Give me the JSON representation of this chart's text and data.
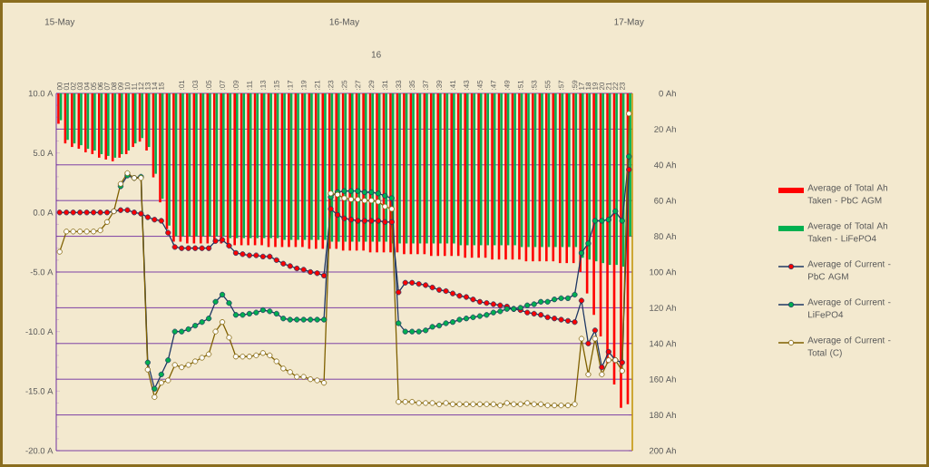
{
  "chart_data": {
    "type": "bar",
    "categories": [
      "00",
      "01",
      "02",
      "03",
      "04",
      "05",
      "06",
      "07",
      "08",
      "09",
      "10",
      "11",
      "12",
      "13",
      "14",
      "15",
      null,
      null,
      ":01",
      null,
      ":03",
      null,
      ":05",
      null,
      ":07",
      null,
      ":09",
      null,
      ":11",
      null,
      ":13",
      null,
      ":15",
      null,
      ":17",
      null,
      ":19",
      null,
      ":21",
      null,
      ":23",
      null,
      ":25",
      null,
      ":27",
      null,
      ":29",
      null,
      ":31",
      null,
      ":33",
      null,
      ":35",
      null,
      ":37",
      null,
      ":39",
      null,
      ":41",
      null,
      ":43",
      null,
      ":45",
      null,
      ":47",
      null,
      ":49",
      null,
      ":51",
      null,
      ":53",
      null,
      ":55",
      null,
      ":57",
      null,
      ":59",
      "17",
      "18",
      "19",
      "20",
      "21",
      "22",
      "23",
      null
    ],
    "series": [
      {
        "name": "Average of Total Ah Taken - PbC AGM",
        "axis": "y2",
        "color": "#ff0000",
        "values": [
          17,
          28,
          30,
          31,
          33,
          34,
          36,
          37,
          38,
          36,
          34,
          30,
          27,
          32,
          47,
          61,
          76,
          83,
          83,
          84,
          84,
          84,
          84,
          84,
          84,
          85,
          85,
          85,
          85,
          85,
          85,
          86,
          86,
          86,
          86,
          86,
          86,
          87,
          87,
          87,
          87,
          87,
          88,
          88,
          88,
          88,
          89,
          89,
          89,
          89,
          89,
          90,
          90,
          90,
          90,
          91,
          91,
          91,
          91,
          91,
          92,
          92,
          92,
          92,
          93,
          93,
          93,
          93,
          93,
          94,
          94,
          94,
          94,
          94,
          95,
          95,
          95,
          100,
          112,
          124,
          136,
          151,
          163,
          176,
          174
        ]
      },
      {
        "name": "Average of Total Ah Taken - LiFePO4",
        "axis": "y2",
        "color": "#00b050",
        "values": [
          15,
          26,
          28,
          29,
          31,
          32,
          34,
          35,
          36,
          34,
          32,
          28,
          25,
          30,
          45,
          59,
          74,
          80,
          80,
          80,
          80,
          80,
          80,
          80,
          80,
          81,
          81,
          81,
          81,
          81,
          81,
          81,
          81,
          82,
          82,
          82,
          82,
          82,
          82,
          82,
          83,
          83,
          83,
          83,
          83,
          83,
          83,
          83,
          83,
          84,
          84,
          84,
          84,
          84,
          84,
          84,
          84,
          84,
          84,
          85,
          85,
          85,
          85,
          85,
          85,
          85,
          85,
          85,
          86,
          86,
          86,
          86,
          86,
          86,
          86,
          86,
          86,
          92,
          93,
          94,
          95,
          96,
          96,
          97,
          80
        ]
      },
      {
        "name": "Average of Current - PbC AGM",
        "type": "line",
        "color": "#ff0000",
        "values": [
          0.0,
          0.0,
          0.0,
          0.0,
          0.0,
          0.0,
          0.0,
          0.0,
          0.1,
          0.2,
          0.2,
          0.0,
          -0.1,
          -0.4,
          -0.6,
          -0.7,
          -1.7,
          -2.9,
          -3.0,
          -3.0,
          -3.0,
          -3.0,
          -3.0,
          -2.4,
          -2.3,
          -2.8,
          -3.4,
          -3.5,
          -3.6,
          -3.6,
          -3.7,
          -3.7,
          -4.0,
          -4.3,
          -4.5,
          -4.7,
          -4.8,
          -5.0,
          -5.1,
          -5.3,
          0.3,
          -0.2,
          -0.5,
          -0.6,
          -0.7,
          -0.7,
          -0.7,
          -0.7,
          -0.8,
          -0.8,
          -6.7,
          -5.9,
          -5.9,
          -6.0,
          -6.1,
          -6.3,
          -6.5,
          -6.6,
          -6.8,
          -7.0,
          -7.1,
          -7.3,
          -7.5,
          -7.6,
          -7.7,
          -7.8,
          -7.9,
          -8.1,
          -8.2,
          -8.4,
          -8.5,
          -8.6,
          -8.8,
          -8.9,
          -9.0,
          -9.1,
          -9.2,
          -7.4,
          -11.0,
          -9.9,
          -13.0,
          -11.7,
          -12.4,
          -12.6,
          3.6
        ]
      },
      {
        "name": "Average of Current - LiFePO4",
        "type": "line",
        "color": "#00b050",
        "values": [
          null,
          null,
          null,
          null,
          null,
          null,
          null,
          null,
          null,
          2.2,
          3.1,
          2.9,
          3.0,
          -12.6,
          -14.8,
          -13.6,
          -12.4,
          -10.0,
          -10.0,
          -9.8,
          -9.5,
          -9.2,
          -8.9,
          -7.5,
          -6.9,
          -7.6,
          -8.6,
          -8.6,
          -8.5,
          -8.4,
          -8.2,
          -8.3,
          -8.5,
          -8.9,
          -9.0,
          -9.0,
          -9.0,
          -9.0,
          -9.0,
          -9.0,
          1.3,
          1.7,
          1.8,
          1.8,
          1.8,
          1.7,
          1.7,
          1.6,
          1.4,
          1.2,
          -9.3,
          -10.0,
          -10.0,
          -10.0,
          -9.9,
          -9.6,
          -9.5,
          -9.3,
          -9.2,
          -9.0,
          -8.9,
          -8.8,
          -8.7,
          -8.6,
          -8.4,
          -8.3,
          -8.1,
          -8.1,
          -8.0,
          -7.8,
          -7.7,
          -7.5,
          -7.5,
          -7.3,
          -7.2,
          -7.2,
          -6.9,
          -3.4,
          -2.6,
          -0.7,
          -0.7,
          -0.6,
          0.1,
          -0.7,
          4.7
        ]
      },
      {
        "name": "Average of Current - Total (C)",
        "type": "line",
        "color": "#ffffff",
        "values": [
          -3.3,
          -1.6,
          -1.6,
          -1.6,
          -1.6,
          -1.6,
          -1.5,
          -0.8,
          0.1,
          2.4,
          3.3,
          2.9,
          2.9,
          -13.2,
          -15.5,
          -14.3,
          -14.1,
          -12.8,
          -13.0,
          -12.8,
          -12.5,
          -12.2,
          -11.9,
          -10.0,
          -9.2,
          -10.5,
          -12.1,
          -12.1,
          -12.1,
          -12.0,
          -11.8,
          -12.0,
          -12.5,
          -13.1,
          -13.4,
          -13.8,
          -13.8,
          -14.0,
          -14.1,
          -14.3,
          1.6,
          1.5,
          1.2,
          1.1,
          1.1,
          1.0,
          1.0,
          0.9,
          0.5,
          0.3,
          -15.9,
          -15.9,
          -15.9,
          -16.0,
          -16.0,
          -16.0,
          -16.1,
          -16.0,
          -16.1,
          -16.1,
          -16.1,
          -16.1,
          -16.1,
          -16.1,
          -16.1,
          -16.2,
          -16.0,
          -16.1,
          -16.1,
          -16.0,
          -16.1,
          -16.1,
          -16.2,
          -16.2,
          -16.2,
          -16.2,
          -16.1,
          -10.6,
          -13.6,
          -10.6,
          -13.6,
          -12.4,
          -12.4,
          -13.3,
          8.3
        ]
      }
    ],
    "ylim": [
      -20,
      10
    ],
    "yticks": [
      {
        "value": -20,
        "label": "-20.0 A"
      },
      {
        "value": -15,
        "label": "-15.0 A"
      },
      {
        "value": -10,
        "label": "-10.0 A"
      },
      {
        "value": -5,
        "label": "-5.0 A"
      },
      {
        "value": 0,
        "label": "0.0 A"
      },
      {
        "value": 5,
        "label": "5.0 A"
      },
      {
        "value": 10,
        "label": "10.0 A"
      }
    ],
    "y2lim": [
      200,
      0
    ],
    "y2ticks": [
      {
        "value": 0,
        "label": "0 Ah"
      },
      {
        "value": 20,
        "label": "20 Ah"
      },
      {
        "value": 40,
        "label": "40 Ah"
      },
      {
        "value": 60,
        "label": "60 Ah"
      },
      {
        "value": 80,
        "label": "80 Ah"
      },
      {
        "value": 100,
        "label": "100 Ah"
      },
      {
        "value": 120,
        "label": "120 Ah"
      },
      {
        "value": 140,
        "label": "140 Ah"
      },
      {
        "value": 160,
        "label": "160 Ah"
      },
      {
        "value": 180,
        "label": "180 Ah"
      },
      {
        "value": 200,
        "label": "200 Ah"
      }
    ],
    "annotations": [
      "15-May",
      "16-May",
      "17-May",
      "16"
    ],
    "grid": "y2",
    "legend": "right",
    "marker": "circle"
  }
}
